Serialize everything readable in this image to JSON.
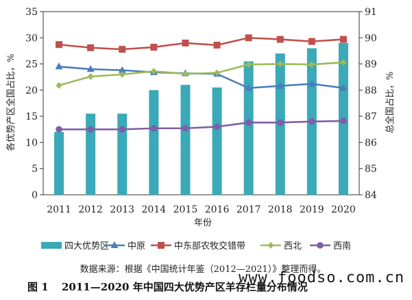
{
  "chart_data": {
    "type": "bar+line",
    "title": "2011—2020 年中国四大优势产区羊存栏量分布情况",
    "figure_label": "图 1",
    "xlabel": "年份",
    "ylabel_left": "各优势产区全国占比，%",
    "ylabel_right": "总全国占比，%",
    "categories": [
      "2011",
      "2012",
      "2013",
      "2014",
      "2015",
      "2016",
      "2017",
      "2018",
      "2019",
      "2020"
    ],
    "ylim_left": [
      0,
      35
    ],
    "yticks_left": [
      "0",
      "5",
      "10",
      "15",
      "20",
      "25",
      "30",
      "35"
    ],
    "ylim_right": [
      84,
      91
    ],
    "yticks_right": [
      "84",
      "85",
      "86",
      "87",
      "88",
      "89",
      "90",
      "91"
    ],
    "bar_series": {
      "name": "四大优势区",
      "axis": "right",
      "color": "#3aa9b8",
      "values": [
        86.4,
        87.1,
        87.1,
        88.0,
        88.2,
        88.1,
        89.1,
        89.4,
        89.6,
        89.8
      ]
    },
    "line_series": [
      {
        "name": "中原",
        "axis": "left",
        "color": "#4a7ebb",
        "marker": "triangle",
        "values": [
          24.5,
          24.0,
          23.8,
          23.4,
          23.2,
          23.1,
          20.4,
          20.8,
          21.2,
          20.4
        ]
      },
      {
        "name": "中东部农牧交错带",
        "axis": "left",
        "color": "#c0504d",
        "marker": "square",
        "values": [
          28.7,
          28.1,
          27.8,
          28.2,
          29.0,
          28.6,
          30.0,
          29.7,
          29.3,
          29.7
        ]
      },
      {
        "name": "西北",
        "axis": "left",
        "color": "#9bbb59",
        "marker": "diamond",
        "values": [
          20.9,
          22.6,
          23.0,
          23.6,
          23.1,
          23.3,
          24.9,
          25.0,
          24.9,
          25.3
        ]
      },
      {
        "name": "西南",
        "axis": "left",
        "color": "#7f5fa6",
        "marker": "circle",
        "values": [
          12.5,
          12.5,
          12.5,
          12.7,
          12.7,
          13.0,
          13.8,
          13.8,
          14.0,
          14.1
        ]
      }
    ],
    "source": "数据来源：根据《中国统计年鉴（2012—2021）》整理而得。",
    "legend_position": "bottom"
  },
  "watermark": "www.foodso.com.cn"
}
